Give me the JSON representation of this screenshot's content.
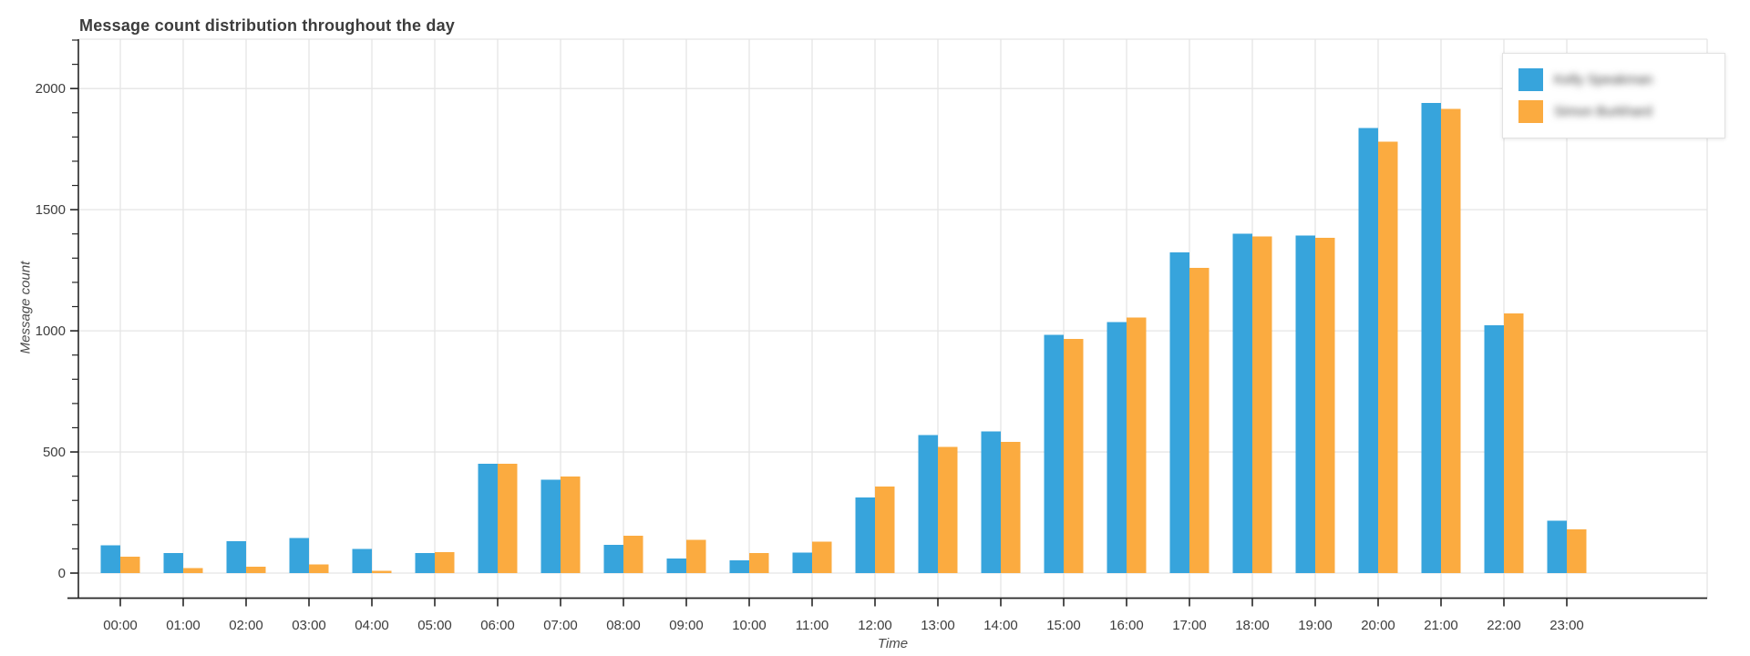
{
  "title": {
    "text": "Message count distribution throughout the day",
    "color": "#3c3c3c"
  },
  "axes": {
    "x": {
      "title": "Time"
    },
    "y": {
      "title": "Message count",
      "tick_values": [
        0,
        500,
        1000,
        1500,
        2000
      ],
      "minor_tick_step": 100
    }
  },
  "legend": {
    "position": "top-right",
    "items": [
      {
        "label": "Kelly Speakman",
        "redacted_blurred": true,
        "color": "#37a4dc"
      },
      {
        "label": "Simon Burkhard",
        "redacted_blurred": true,
        "color": "#fbab40"
      }
    ]
  },
  "chart_data": {
    "type": "bar",
    "title": "Message count distribution throughout the day",
    "xlabel": "Time",
    "ylabel": "Message count",
    "ylim": [
      0,
      2200
    ],
    "grid": true,
    "legend_position": "top-right",
    "categories": [
      "00:00",
      "01:00",
      "02:00",
      "03:00",
      "04:00",
      "05:00",
      "06:00",
      "07:00",
      "08:00",
      "09:00",
      "10:00",
      "11:00",
      "12:00",
      "13:00",
      "14:00",
      "15:00",
      "16:00",
      "17:00",
      "18:00",
      "19:00",
      "20:00",
      "21:00",
      "22:00",
      "23:00"
    ],
    "series": [
      {
        "name": "Kelly Speakman",
        "redacted_blurred": true,
        "color": "#37a4dc",
        "values": [
          115,
          82,
          132,
          144,
          99,
          82,
          451,
          385,
          117,
          60,
          52,
          84,
          313,
          569,
          584,
          984,
          1036,
          1324,
          1400,
          1393,
          1838,
          1940,
          1022,
          216
        ]
      },
      {
        "name": "Simon Burkhard",
        "redacted_blurred": true,
        "color": "#fbab40",
        "values": [
          68,
          20,
          26,
          35,
          9,
          87,
          452,
          398,
          154,
          138,
          82,
          129,
          357,
          521,
          542,
          967,
          1054,
          1260,
          1390,
          1383,
          1781,
          1917,
          1071,
          181
        ]
      }
    ],
    "colors": {
      "grid": "#e5e5e5",
      "spine": "#262626",
      "tick_label": "#3d3d3d"
    }
  }
}
